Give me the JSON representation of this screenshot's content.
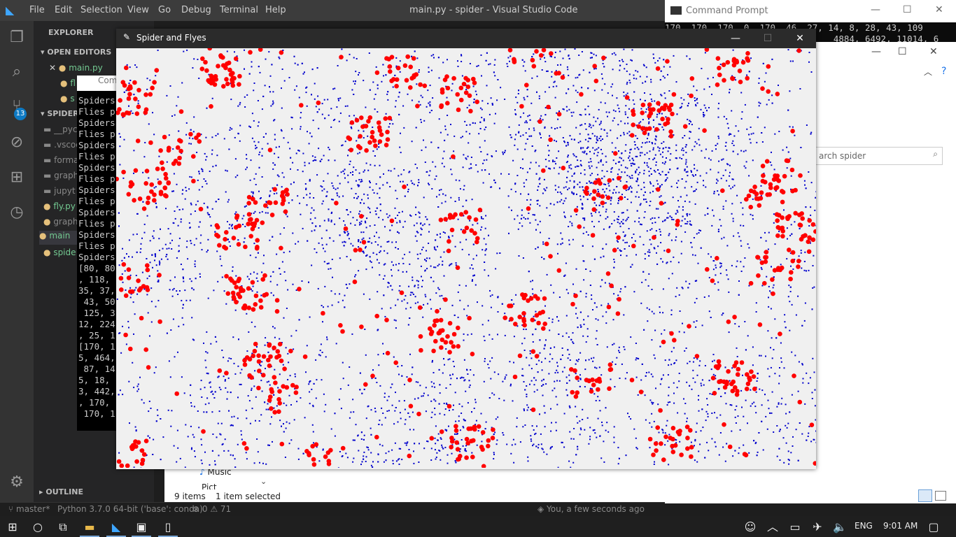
{
  "vscode": {
    "title": "main.py - spider - Visual Studio Code",
    "menu": [
      "File",
      "Edit",
      "Selection",
      "View",
      "Go",
      "Debug",
      "Terminal",
      "Help"
    ],
    "scm_badge": "13",
    "explorer": {
      "header": "EXPLORER",
      "open_editors": "OPEN EDITORS",
      "open_files": [
        "main.py",
        "fl",
        "s"
      ],
      "project": "SPIDER",
      "tree": [
        "__pyc",
        ".vscod",
        "forma",
        "graph",
        "jupyt",
        "fly.py",
        "graph",
        "main",
        "spide"
      ],
      "outline": "OUTLINE"
    },
    "status": {
      "branch": "master*",
      "python": "Python 3.7.0 64-bit ('base': conda)",
      "errors": "0",
      "warnings": "71",
      "blame": "You, a few seconds ago"
    }
  },
  "terminal": {
    "title": "Com",
    "lines": [
      "Spiders",
      "Flies p",
      "Spiders",
      "Flies p",
      "Spiders",
      "Flies p",
      "Spiders",
      "Flies p",
      "Spiders",
      "Flies p",
      "Spiders",
      "Flies p",
      "Spiders",
      "Flies p",
      "Spiders",
      "[80, 80",
      ", 118, ",
      "35, 37,",
      " 43, 50",
      " 125, 3",
      "12, 224",
      ", 25, 1",
      "[170, 1",
      "5, 464,",
      " 87, 14",
      "5, 18, ",
      "3, 442,",
      ", 170, ",
      " 170, 1"
    ]
  },
  "cmd": {
    "title": "Command Prompt",
    "lines": [
      "170, 170, 170, 0, 170, 46, 27, 14, 8, 28, 43, 109",
      "                                4884, 6492, 11014, 6"
    ]
  },
  "file_explorer": {
    "search_placeholder": "arch spider",
    "items_count": "9 items",
    "selected": "1 item selected",
    "music": "Music",
    "pictures": "Pict"
  },
  "game": {
    "title": "Spider and Flyes",
    "fly_color": "#0000cc",
    "spider_color": "#ff0000"
  },
  "taskbar": {
    "language": "ENG",
    "time": "9:01 AM"
  }
}
